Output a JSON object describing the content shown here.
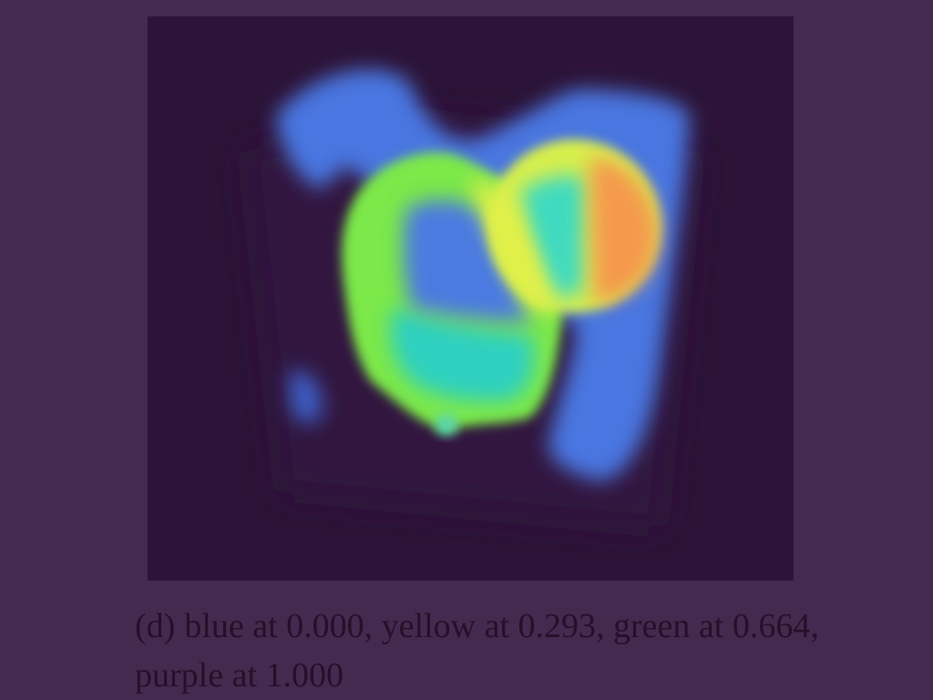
{
  "figure": {
    "colors": {
      "page_background": "#452a50",
      "image_background": "#2c1337",
      "blue": "#4a76e0",
      "cyan": "#2fd0c0",
      "green": "#7be84a",
      "yellow": "#e2f04a",
      "orange": "#f59a4e",
      "caption_text": "#241129"
    }
  },
  "caption": {
    "label": "(d)",
    "text": "blue at 0.000, yellow at 0.293, green at 0.664, purple at 1.000"
  }
}
